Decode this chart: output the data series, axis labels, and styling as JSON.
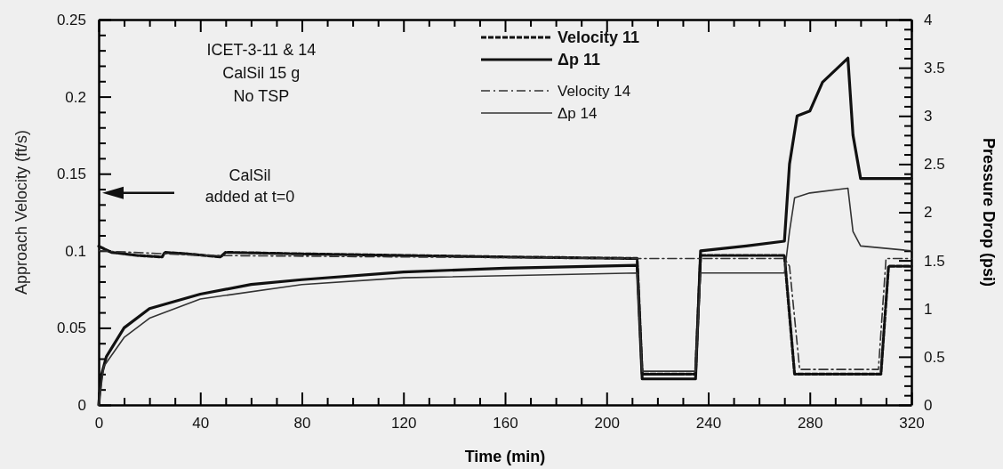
{
  "chart_data": {
    "type": "line",
    "xlabel": "Time (min)",
    "ylabel": "Approach Velocity (ft/s)",
    "y2label": "Pressure Drop (psi)",
    "xlim": [
      0,
      320
    ],
    "ylim": [
      0,
      0.25
    ],
    "y2lim": [
      0,
      4
    ],
    "xticks": [
      0,
      {
        "value": 10,
        "label": null
      },
      {
        "value": 20,
        "label": null
      },
      {
        "value": 30,
        "label": null
      },
      40,
      {
        "value": 50,
        "label": null
      },
      {
        "value": 60,
        "label": null
      },
      {
        "value": 70,
        "label": null
      },
      80,
      {
        "value": 90,
        "label": null
      },
      {
        "value": 100,
        "label": null
      },
      {
        "value": 110,
        "label": null
      },
      120,
      {
        "value": 130,
        "label": null
      },
      {
        "value": 140,
        "label": null
      },
      {
        "value": 150,
        "label": null
      },
      160,
      {
        "value": 170,
        "label": null
      },
      {
        "value": 180,
        "label": null
      },
      {
        "value": 190,
        "label": null
      },
      200,
      {
        "value": 210,
        "label": null
      },
      {
        "value": 220,
        "label": null
      },
      {
        "value": 230,
        "label": null
      },
      240,
      {
        "value": 250,
        "label": null
      },
      {
        "value": 260,
        "label": null
      },
      {
        "value": 270,
        "label": null
      },
      280,
      {
        "value": 290,
        "label": null
      },
      {
        "value": 300,
        "label": null
      },
      {
        "value": 310,
        "label": null
      },
      320
    ],
    "yticks": [
      0,
      {
        "value": 0.01,
        "label": null
      },
      {
        "value": 0.02,
        "label": null
      },
      {
        "value": 0.03,
        "label": null
      },
      {
        "value": 0.04,
        "label": null
      },
      0.05,
      {
        "value": 0.06,
        "label": null
      },
      {
        "value": 0.07,
        "label": null
      },
      {
        "value": 0.08,
        "label": null
      },
      {
        "value": 0.09,
        "label": null
      },
      0.1,
      {
        "value": 0.11,
        "label": null
      },
      {
        "value": 0.12,
        "label": null
      },
      {
        "value": 0.13,
        "label": null
      },
      {
        "value": 0.14,
        "label": null
      },
      0.15,
      {
        "value": 0.16,
        "label": null
      },
      {
        "value": 0.17,
        "label": null
      },
      {
        "value": 0.18,
        "label": null
      },
      {
        "value": 0.19,
        "label": null
      },
      0.2,
      {
        "value": 0.21,
        "label": null
      },
      {
        "value": 0.22,
        "label": null
      },
      {
        "value": 0.23,
        "label": null
      },
      {
        "value": 0.24,
        "label": null
      },
      0.25
    ],
    "y2ticks": [
      0,
      {
        "value": 0.1,
        "label": null
      },
      {
        "value": 0.2,
        "label": null
      },
      {
        "value": 0.3,
        "label": null
      },
      {
        "value": 0.4,
        "label": null
      },
      0.5,
      {
        "value": 0.6,
        "label": null
      },
      {
        "value": 0.7,
        "label": null
      },
      {
        "value": 0.8,
        "label": null
      },
      {
        "value": 0.9,
        "label": null
      },
      1,
      {
        "value": 1.1,
        "label": null
      },
      {
        "value": 1.2,
        "label": null
      },
      {
        "value": 1.3,
        "label": null
      },
      {
        "value": 1.4,
        "label": null
      },
      1.5,
      {
        "value": 1.6,
        "label": null
      },
      {
        "value": 1.7,
        "label": null
      },
      {
        "value": 1.8,
        "label": null
      },
      {
        "value": 1.9,
        "label": null
      },
      2,
      {
        "value": 2.1,
        "label": null
      },
      {
        "value": 2.2,
        "label": null
      },
      {
        "value": 2.3,
        "label": null
      },
      {
        "value": 2.4,
        "label": null
      },
      2.5,
      {
        "value": 2.6,
        "label": null
      },
      {
        "value": 2.7,
        "label": null
      },
      {
        "value": 2.8,
        "label": null
      },
      {
        "value": 2.9,
        "label": null
      },
      3,
      {
        "value": 3.1,
        "label": null
      },
      {
        "value": 3.2,
        "label": null
      },
      {
        "value": 3.3,
        "label": null
      },
      {
        "value": 3.4,
        "label": null
      },
      3.5,
      {
        "value": 3.6,
        "label": null
      },
      {
        "value": 3.7,
        "label": null
      },
      {
        "value": 3.8,
        "label": null
      },
      {
        "value": 3.9,
        "label": null
      },
      4
    ],
    "grid": false,
    "legend": "top",
    "annotations": [
      "ICET-3-11 & 14",
      "CalSil 15 g",
      "No TSP",
      "CalSil\nadded at t=0"
    ],
    "series": [
      {
        "name": "Velocity 11",
        "color": "#111111",
        "line_style": "dashed",
        "x": [
          0,
          5,
          15,
          25,
          26,
          35,
          48,
          50,
          80,
          120,
          160,
          212,
          214,
          235,
          237,
          270,
          274,
          308,
          311,
          320
        ],
        "values": [
          0.103,
          0.099,
          0.097,
          0.096,
          0.099,
          0.098,
          0.096,
          0.099,
          0.098,
          0.097,
          0.096,
          0.095,
          0.02,
          0.02,
          0.097,
          0.097,
          0.02,
          0.02,
          0.09,
          0.09
        ]
      },
      {
        "name": "Δp 11",
        "color": "#111111",
        "line_style": "solid",
        "axis": "y2",
        "x": [
          0,
          1,
          3,
          10,
          20,
          40,
          60,
          80,
          120,
          160,
          212,
          214,
          235,
          237,
          255,
          270,
          272,
          275,
          280,
          285,
          295,
          297,
          300,
          320
        ],
        "values": [
          0,
          0.3,
          0.5,
          0.8,
          1.0,
          1.15,
          1.25,
          1.3,
          1.38,
          1.42,
          1.45,
          0.27,
          0.27,
          1.6,
          1.65,
          1.7,
          2.5,
          3.0,
          3.05,
          3.35,
          3.6,
          2.8,
          2.35,
          2.35
        ]
      },
      {
        "name": "Velocity 14",
        "color": "#333333",
        "line_style": "dashed",
        "x": [
          0,
          40,
          120,
          212,
          236,
          270,
          272,
          276,
          307,
          310,
          320
        ],
        "values": [
          0.1,
          0.097,
          0.096,
          0.095,
          0.095,
          0.095,
          0.09,
          0.023,
          0.023,
          0.095,
          0.095
        ]
      },
      {
        "name": "Δp 14",
        "color": "#333333",
        "line_style": "solid",
        "axis": "y2",
        "x": [
          0,
          2,
          10,
          20,
          40,
          80,
          120,
          212,
          214,
          235,
          237,
          270,
          272,
          274,
          280,
          295,
          297,
          300,
          320
        ],
        "values": [
          0,
          0.4,
          0.7,
          0.9,
          1.1,
          1.25,
          1.32,
          1.37,
          0.35,
          0.35,
          1.37,
          1.37,
          1.8,
          2.15,
          2.2,
          2.25,
          1.8,
          1.65,
          1.6
        ]
      }
    ]
  }
}
